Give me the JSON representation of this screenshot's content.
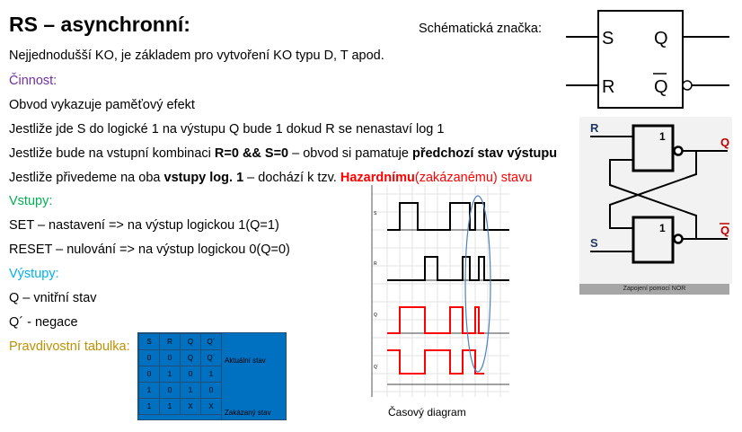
{
  "title": "RS – asynchronní:",
  "schematic_label": "Schématická značka:",
  "lines": {
    "l1": "Nejjednodušší KO, je základem pro vytvoření KO typu D, T apod.",
    "cinnost": "Činnost:",
    "l2": "Obvod vykazuje paměťový efekt",
    "l3": "Jestliže jde S do logické 1 na výstupu Q bude 1 dokud R se nenastaví log 1",
    "l4a": "Jestliže bude na vstupní kombinaci ",
    "l4b": "R=0 && S=0",
    "l4c": " – obvod si pamatuje ",
    "l4d": "předchozí stav výstupu",
    "l5a": "Jestliže přivedeme na oba ",
    "l5b": "vstupy log. 1",
    "l5c": " – dochází k tzv. ",
    "l5d": "Hazardnímu",
    "l5e": "(zakázanému) stavu",
    "vstupy": "Vstupy:",
    "set": "SET – nastavení => na výstup logickou 1(Q=1)",
    "reset": "RESET – nulování => na výstup logickou 0(Q=0)",
    "vystupy": "Výstupy:",
    "q": "Q – vnitřní stav",
    "qn": "Q´ - negace",
    "pravdivostni": "Pravdivostní tabulka:"
  },
  "truth_table": {
    "header": [
      "S",
      "R",
      "Q",
      "Q´"
    ],
    "rows": [
      [
        "0",
        "0",
        "Q",
        "Q´"
      ],
      [
        "0",
        "1",
        "0",
        "1"
      ],
      [
        "1",
        "0",
        "1",
        "0"
      ],
      [
        "1",
        "1",
        "X",
        "X"
      ]
    ],
    "note_memory": "Aktuální stav",
    "note_forbidden": "Zakázaný stav"
  },
  "symbol": {
    "s": "S",
    "r": "R",
    "q": "Q",
    "qn": "Q"
  },
  "nor": {
    "r": "R",
    "s": "S",
    "q": "Q",
    "qn": "Q",
    "gate1": "1",
    "gate2": "1",
    "caption": "Zapojení pomocí NOR"
  },
  "timing": {
    "caption": "Časový diagram",
    "signals": [
      "S",
      "R",
      "Q",
      "Q´"
    ]
  },
  "colors": {
    "purple": "#7030a0",
    "green": "#00b050",
    "cyan": "#00b0f0",
    "gold": "#bf9000",
    "red": "#ff0000",
    "table": "#0070c0"
  }
}
